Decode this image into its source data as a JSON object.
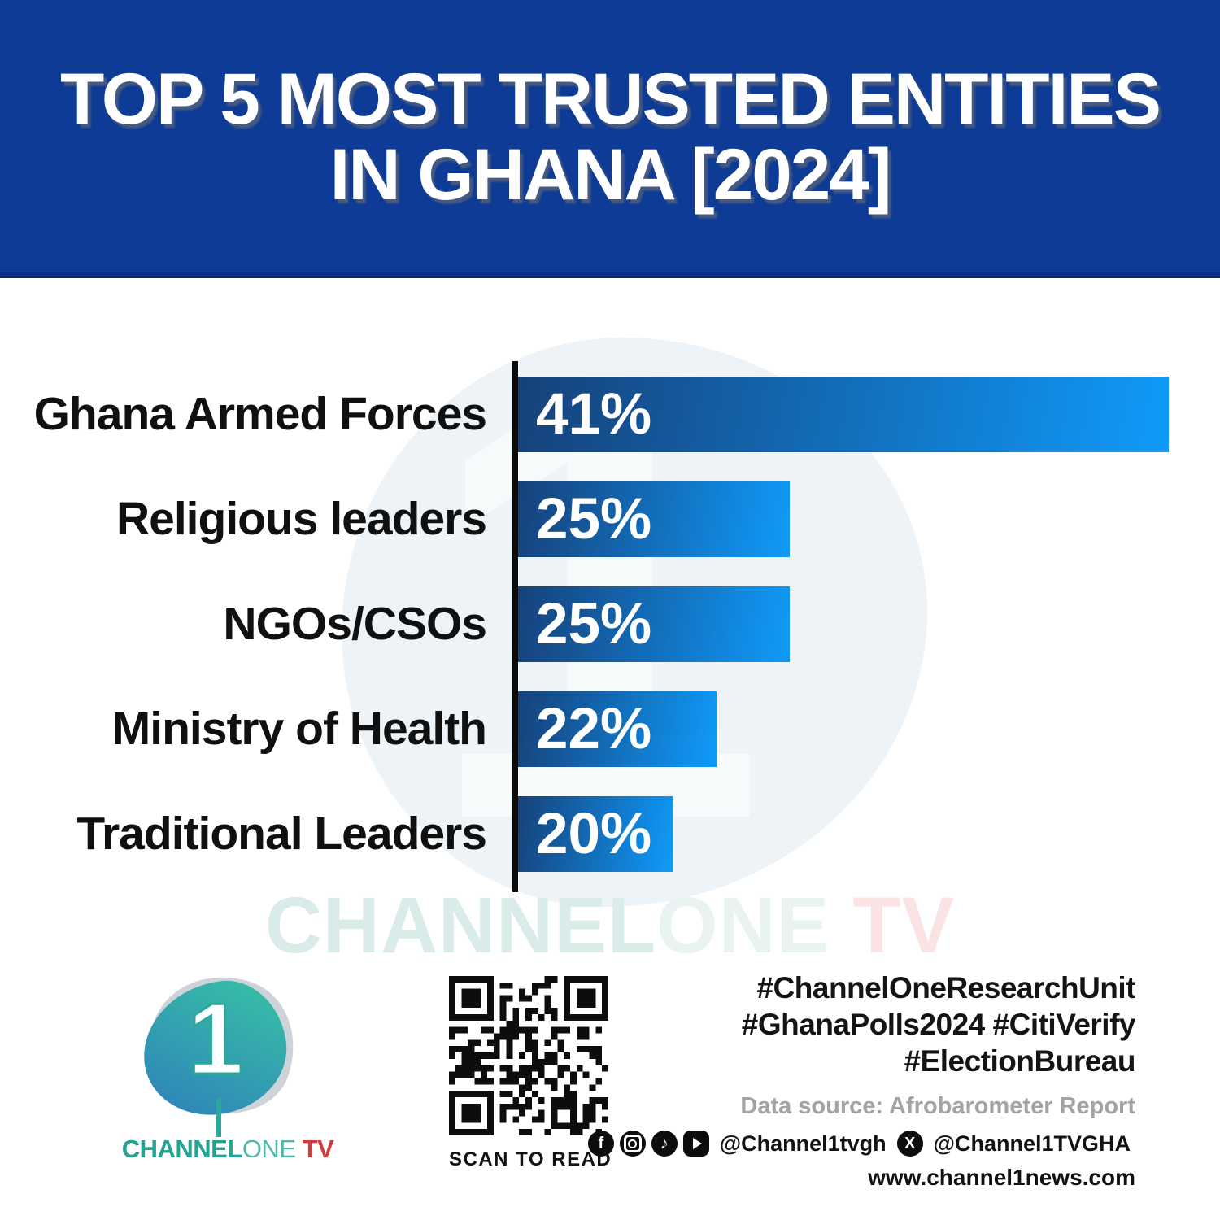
{
  "header": {
    "title_line1": "TOP 5 MOST TRUSTED ENTITIES",
    "title_line2": "IN GHANA [2024]"
  },
  "chart_data": {
    "type": "bar",
    "orientation": "horizontal",
    "title": "TOP 5 MOST TRUSTED ENTITIES IN GHANA [2024]",
    "categories": [
      "Ghana Armed Forces",
      "Religious leaders",
      "NGOs/CSOs",
      "Ministry of Health",
      "Traditional Leaders"
    ],
    "values": [
      41,
      25,
      25,
      22,
      20
    ],
    "value_labels": [
      "41%",
      "25%",
      "25%",
      "22%",
      "20%"
    ],
    "unit": "percent",
    "xlim": [
      0,
      41
    ],
    "grid": false,
    "legend": false,
    "bar_visual_fractions": [
      1.0,
      0.4175,
      0.4175,
      0.3056,
      0.2375
    ],
    "bar_gradient": [
      "#16417A",
      "#0F9BFA"
    ],
    "note": "bar lengths in source graphic are not drawn to numeric scale"
  },
  "watermark": {
    "part_channel": "CHANNEL",
    "part_one": "ONE",
    "part_tv": " TV",
    "numeral": "1"
  },
  "footer": {
    "logo": {
      "numeral": "1",
      "brand_channel": "CHANNEL",
      "brand_one": "ONE",
      "brand_tv": " TV"
    },
    "qr_caption": "SCAN TO READ",
    "hashtags": [
      "#ChannelOneResearchUnit",
      "#GhanaPolls2024 #CitiVerify",
      "#ElectionBureau"
    ],
    "data_source": "Data source: Afrobarometer Report",
    "social": {
      "icons": [
        "facebook-icon",
        "instagram-icon",
        "tiktok-icon",
        "youtube-icon",
        "x-twitter-icon"
      ],
      "facebook_glyph": "f",
      "tiktok_glyph": "♪",
      "x_glyph": "X",
      "handle_primary": "@Channel1tvgh",
      "handle_x": "@Channel1TVGHA",
      "website": "www.channel1news.com"
    }
  },
  "colors": {
    "banner": "#0E3B95",
    "banner_edge": "#0B2F7E",
    "bar_start": "#16417A",
    "bar_end": "#0F9BFA",
    "axis": "#0B0B0B",
    "category_label": "#101010",
    "value_label": "#FFFFFF",
    "watermark_teal": "#D9ECE9",
    "watermark_pink": "#FAE3E2",
    "brand_teal": "#23A393",
    "brand_teal_light": "#52B8AB",
    "brand_red": "#D03C3C",
    "source_gray": "#A3A3A3"
  }
}
